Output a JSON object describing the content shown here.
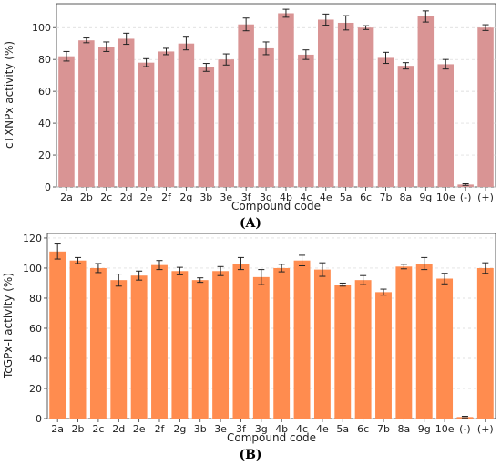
{
  "chart_data": [
    {
      "type": "bar",
      "panel_label": "(A)",
      "xlabel": "Compound code",
      "ylabel": "cTXNPx activity (%)",
      "ylim": [
        0,
        115
      ],
      "yticks": [
        0,
        20,
        40,
        60,
        80,
        100
      ],
      "grid": true,
      "color": "#d99494",
      "categories": [
        "2a",
        "2b",
        "2c",
        "2d",
        "2e",
        "2f",
        "2g",
        "3b",
        "3e",
        "3f",
        "3g",
        "4b",
        "4c",
        "4e",
        "5a",
        "6c",
        "7b",
        "8a",
        "9g",
        "10e",
        "(-)",
        "(+)"
      ],
      "values": [
        82,
        92,
        88,
        93,
        78,
        85,
        90,
        75,
        80,
        102,
        87,
        109,
        83,
        105,
        103,
        100,
        81,
        76,
        107,
        77,
        1.5,
        100
      ],
      "errors": [
        3,
        1.5,
        3,
        3.5,
        2.5,
        2,
        4,
        2.5,
        3.5,
        4,
        4,
        2.5,
        3,
        3.5,
        4.5,
        1.2,
        3.5,
        2,
        3.5,
        3,
        0.5,
        1.8
      ]
    },
    {
      "type": "bar",
      "panel_label": "(B)",
      "xlabel": "Compound code",
      "ylabel": "TcGPx-I activity (%)",
      "ylim": [
        0,
        123
      ],
      "yticks": [
        0,
        20,
        40,
        60,
        80,
        100,
        120
      ],
      "grid": true,
      "color": "#ff8c4f",
      "categories": [
        "2a",
        "2b",
        "2c",
        "2d",
        "2e",
        "2f",
        "2g",
        "3b",
        "3e",
        "3f",
        "3g",
        "4b",
        "4c",
        "4e",
        "5a",
        "6c",
        "7b",
        "8a",
        "9g",
        "10e",
        "(-)",
        "(+)"
      ],
      "values": [
        111,
        105,
        100,
        92,
        95,
        102,
        98,
        92,
        98,
        103,
        94,
        100,
        105,
        99,
        89,
        92,
        84,
        101,
        103,
        93,
        1,
        100
      ],
      "errors": [
        5,
        2,
        3,
        4,
        3,
        3,
        2.5,
        1.5,
        3,
        4,
        5,
        2.5,
        3.5,
        4.5,
        1,
        3,
        2,
        1.5,
        4,
        3.5,
        0.5,
        3.5
      ]
    }
  ]
}
